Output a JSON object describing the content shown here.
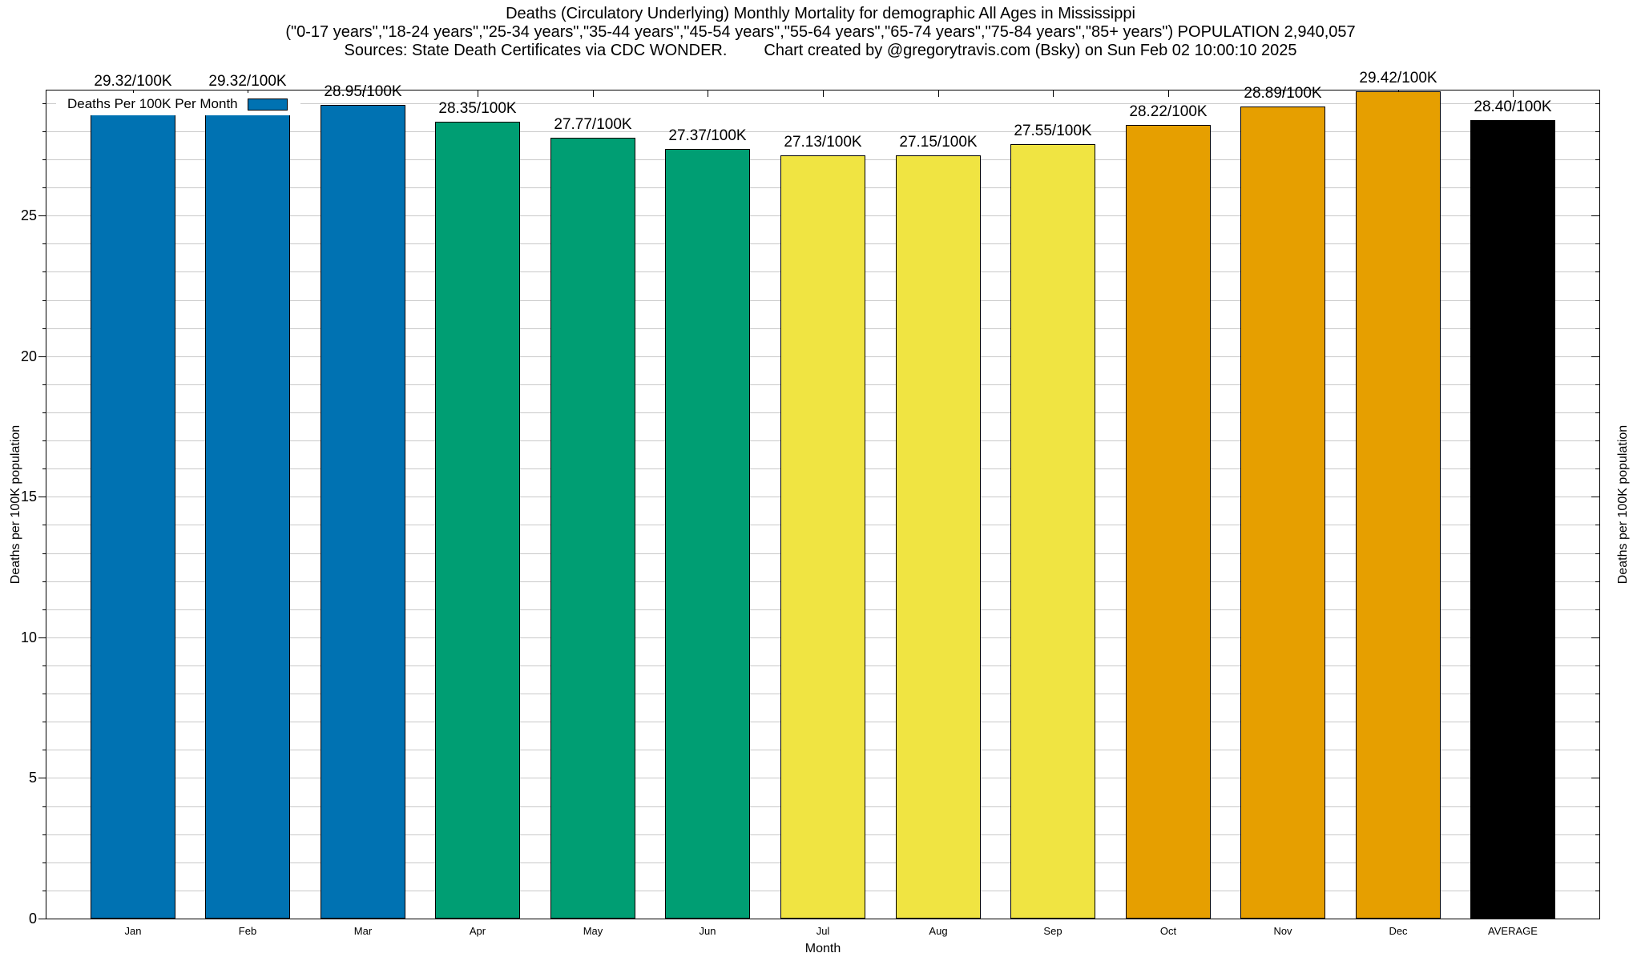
{
  "figure": {
    "title_line1": "Deaths (Circulatory Underlying) Monthly Mortality for demographic All Ages in Mississippi",
    "title_line2": "(\"0-17 years\",\"18-24 years\",\"25-34 years\",\"35-44 years\",\"45-54 years\",\"55-64 years\",\"65-74 years\",\"75-84 years\",\"85+ years\") POPULATION 2,940,057",
    "sources": "Sources: State Death Certificates via CDC WONDER.",
    "credit": "Chart created by @gregorytravis.com (Bsky) on Sun Feb 02 10:00:10 2025"
  },
  "legend": {
    "label": "Deaths Per 100K Per Month",
    "swatch_color": "#0072B2"
  },
  "axes": {
    "x_title": "Month",
    "y_title": "Deaths per 100K population",
    "y2_title": "Deaths per 100K population",
    "y_ticks": [
      0,
      5,
      10,
      15,
      20,
      25
    ],
    "y_minor_step": 1
  },
  "chart_data": {
    "type": "bar",
    "title": "Deaths (Circulatory Underlying) Monthly Mortality for demographic All Ages in Mississippi",
    "xlabel": "Month",
    "ylabel": "Deaths per 100K population",
    "ylim": [
      0,
      29.45
    ],
    "grid": "horizontal, minor step 1, light gray",
    "legend_position": "top-left",
    "legend_label": "Deaths Per 100K Per Month",
    "categories": [
      "Jan",
      "Feb",
      "Mar",
      "Apr",
      "May",
      "Jun",
      "Jul",
      "Aug",
      "Sep",
      "Oct",
      "Nov",
      "Dec",
      "AVERAGE"
    ],
    "values": [
      29.32,
      29.32,
      28.95,
      28.35,
      27.77,
      27.37,
      27.13,
      27.15,
      27.55,
      28.22,
      28.89,
      29.42,
      28.4
    ],
    "bar_labels": [
      "29.32/100K",
      "29.32/100K",
      "28.95/100K",
      "28.35/100K",
      "27.77/100K",
      "27.37/100K",
      "27.13/100K",
      "27.15/100K",
      "27.55/100K",
      "28.22/100K",
      "28.89/100K",
      "29.42/100K",
      "28.40/100K"
    ],
    "bar_colors": [
      "#0072B2",
      "#0072B2",
      "#0072B2",
      "#009E73",
      "#009E73",
      "#009E73",
      "#F0E442",
      "#F0E442",
      "#F0E442",
      "#E69F00",
      "#E69F00",
      "#E69F00",
      "#000000"
    ],
    "palette": {
      "blue": "#0072B2",
      "green": "#009E73",
      "yellow": "#F0E442",
      "orange": "#E69F00",
      "black": "#000000"
    }
  }
}
